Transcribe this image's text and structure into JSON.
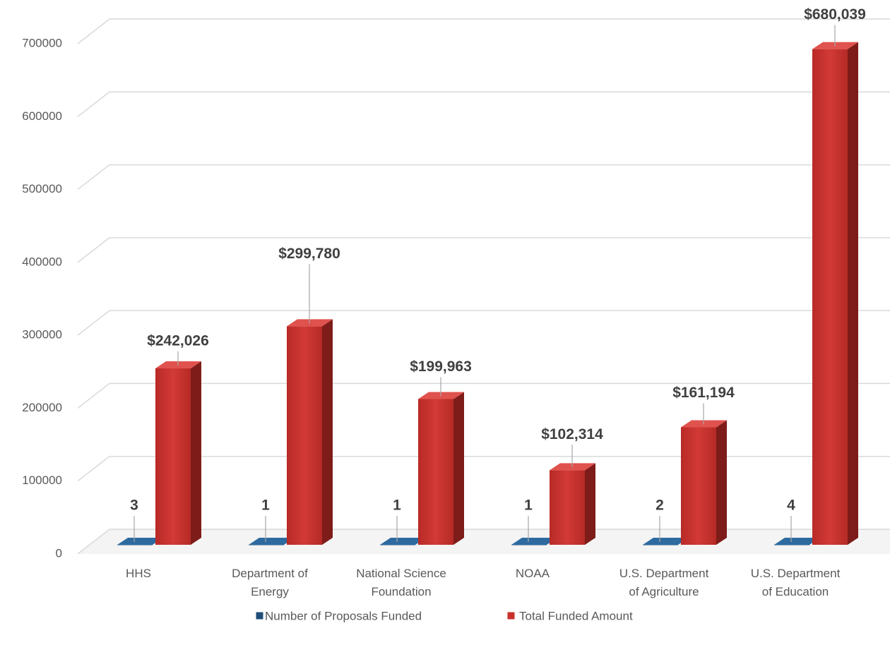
{
  "chart_data": {
    "type": "bar3d",
    "categories": [
      "HHS",
      "Department of\nEnergy",
      "National Science\nFoundation",
      "NOAA",
      "U.S. Department\nof Agriculture",
      "U.S. Department\nof Education"
    ],
    "series": [
      {
        "name": "Number of Proposals Funded",
        "color": "#1f4e79",
        "values": [
          3,
          1,
          1,
          1,
          2,
          4
        ]
      },
      {
        "name": "Total Funded Amount",
        "color": "#c9302c",
        "values": [
          242026,
          299780,
          199963,
          102314,
          161194,
          680039
        ],
        "value_labels": [
          "$242,026",
          "$299,780",
          "$199,963",
          "$102,314",
          "$161,194",
          "$680,039"
        ]
      }
    ],
    "ylim": [
      0,
      700000
    ],
    "yticks": [
      0,
      100000,
      200000,
      300000,
      400000,
      500000,
      600000,
      700000
    ],
    "grid": true,
    "legend": "bottom"
  }
}
